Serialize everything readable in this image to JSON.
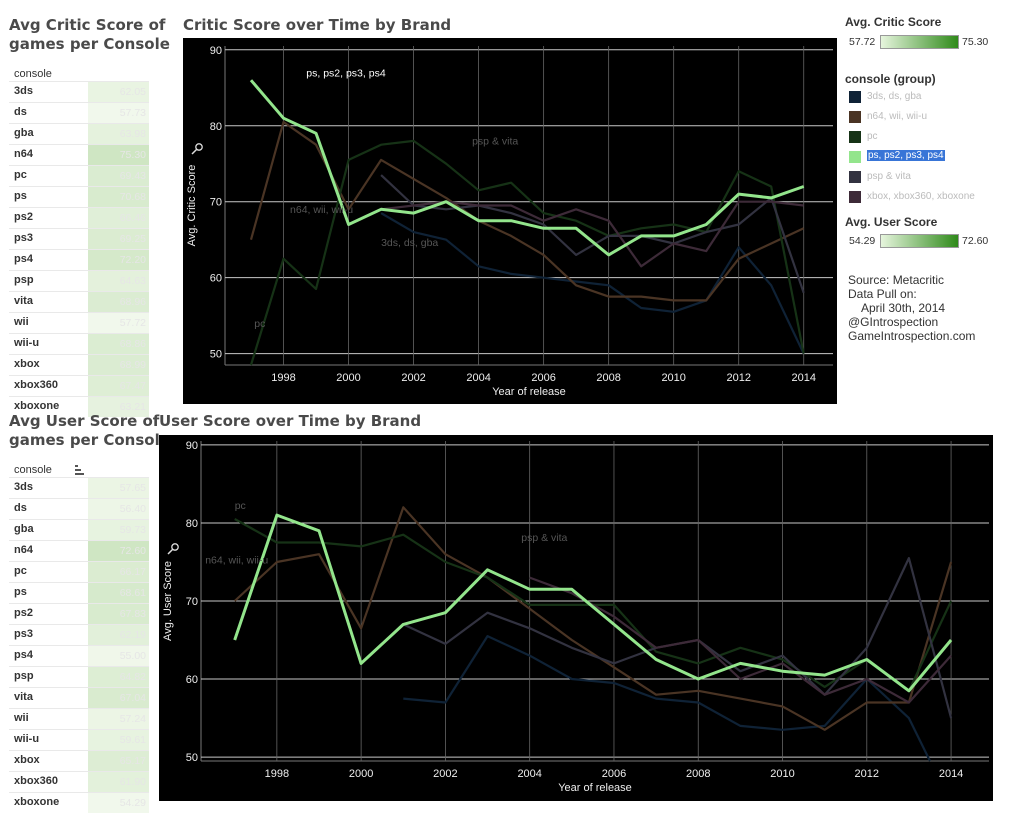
{
  "critic_table": {
    "title_line1": "Avg Critic Score of",
    "title_line2": "games per Console",
    "header": "console",
    "rows": [
      {
        "console": "3ds",
        "value": "62.05",
        "v": 62.05
      },
      {
        "console": "ds",
        "value": "57.73",
        "v": 57.73
      },
      {
        "console": "gba",
        "value": "63.98",
        "v": 63.98
      },
      {
        "console": "n64",
        "value": "75.30",
        "v": 75.3
      },
      {
        "console": "pc",
        "value": "69.43",
        "v": 69.43
      },
      {
        "console": "ps",
        "value": "70.68",
        "v": 70.68
      },
      {
        "console": "ps2",
        "value": "66.46",
        "v": 66.46
      },
      {
        "console": "ps3",
        "value": "69.25",
        "v": 69.25
      },
      {
        "console": "ps4",
        "value": "72.20",
        "v": 72.2
      },
      {
        "console": "psp",
        "value": "64.63",
        "v": 64.63
      },
      {
        "console": "vita",
        "value": "68.96",
        "v": 68.96
      },
      {
        "console": "wii",
        "value": "57.72",
        "v": 57.72
      },
      {
        "console": "wii-u",
        "value": "68.86",
        "v": 68.86
      },
      {
        "console": "xbox",
        "value": "68.99",
        "v": 68.99
      },
      {
        "console": "xbox360",
        "value": "67.47",
        "v": 67.47
      },
      {
        "console": "xboxone",
        "value": "63.21",
        "v": 63.21
      }
    ]
  },
  "user_table": {
    "title_line1": "Avg User Score of",
    "title_line2": "games per Console",
    "header": "console",
    "rows": [
      {
        "console": "3ds",
        "value": "57.65",
        "v": 57.65
      },
      {
        "console": "ds",
        "value": "56.40",
        "v": 56.4
      },
      {
        "console": "gba",
        "value": "59.73",
        "v": 59.73
      },
      {
        "console": "n64",
        "value": "72.60",
        "v": 72.6
      },
      {
        "console": "pc",
        "value": "66.17",
        "v": 66.17
      },
      {
        "console": "ps",
        "value": "68.61",
        "v": 68.61
      },
      {
        "console": "ps2",
        "value": "67.83",
        "v": 67.83
      },
      {
        "console": "ps3",
        "value": "62.19",
        "v": 62.19
      },
      {
        "console": "ps4",
        "value": "55.00",
        "v": 55.0
      },
      {
        "console": "psp",
        "value": "64.82",
        "v": 64.82
      },
      {
        "console": "vita",
        "value": "67.04",
        "v": 67.04
      },
      {
        "console": "wii",
        "value": "57.24",
        "v": 57.24
      },
      {
        "console": "wii-u",
        "value": "59.61",
        "v": 59.61
      },
      {
        "console": "xbox",
        "value": "65.17",
        "v": 65.17
      },
      {
        "console": "xbox360",
        "value": "61.90",
        "v": 61.9
      },
      {
        "console": "xboxone",
        "value": "54.29",
        "v": 54.29
      }
    ]
  },
  "legend": {
    "critic_title": "Avg. Critic Score",
    "critic_min": "57.72",
    "critic_max": "75.30",
    "group_title": "console (group)",
    "groups": [
      {
        "name": "3ds, ds, gba",
        "color": "#0f2236",
        "selected": false
      },
      {
        "name": "n64, wii, wii-u",
        "color": "#4a3424",
        "selected": false
      },
      {
        "name": "pc",
        "color": "#163216",
        "selected": false
      },
      {
        "name": "ps, ps2, ps3, ps4",
        "color": "#93e58c",
        "selected": true
      },
      {
        "name": "psp & vita",
        "color": "#323240",
        "selected": false
      },
      {
        "name": "xbox, xbox360, xboxone",
        "color": "#3d2a38",
        "selected": false
      }
    ],
    "user_title": "Avg. User Score",
    "user_min": "54.29",
    "user_max": "72.60"
  },
  "source": {
    "line1": "Source: Metacritic",
    "line2": "Data Pull on:",
    "line3": "April 30th, 2014",
    "line4": "@GIntrospection",
    "line5": "GameIntrospection.com"
  },
  "colors": {
    "gradient_light": "#e6f5dd",
    "gradient_dark": "#2f8a1a",
    "chart_bg": "#000000",
    "highlight": "#93e58c"
  },
  "chart_data": [
    {
      "type": "line",
      "title": "Critic Score over Time by Brand",
      "xlabel": "Year of release",
      "ylabel": "Avg. Critic Score",
      "xlim": [
        1996.2,
        2014.9
      ],
      "ylim": [
        48.5,
        90.5
      ],
      "xticks": [
        1998,
        2000,
        2002,
        2004,
        2006,
        2008,
        2010,
        2012,
        2014
      ],
      "yticks": [
        50,
        60,
        70,
        80,
        90
      ],
      "grid": true,
      "series": [
        {
          "name": "3ds, ds, gba",
          "color": "#0f2236",
          "width": 2.2,
          "x": [
            2001,
            2002,
            2003,
            2004,
            2005,
            2006,
            2007,
            2008,
            2009,
            2010,
            2011,
            2012,
            2013,
            2014
          ],
          "y": [
            68.5,
            66,
            65,
            61.5,
            60.5,
            60,
            59.5,
            59,
            56,
            55.5,
            57,
            64,
            59,
            50
          ]
        },
        {
          "name": "n64, wii, wii-u",
          "color": "#4a3424",
          "width": 2.2,
          "x": [
            1997,
            1998,
            1999,
            2000,
            2001,
            2002,
            2003,
            2004,
            2005,
            2006,
            2007,
            2008,
            2009,
            2010,
            2011,
            2012,
            2013,
            2014
          ],
          "y": [
            65,
            80.5,
            77.5,
            69,
            75.5,
            73,
            70.5,
            67.5,
            65.5,
            63,
            59,
            57.5,
            57.5,
            57,
            57,
            62.5,
            64.5,
            66.5
          ]
        },
        {
          "name": "pc",
          "color": "#163216",
          "width": 2.2,
          "x": [
            1997,
            1998,
            1999,
            2000,
            2001,
            2002,
            2003,
            2004,
            2005,
            2006,
            2007,
            2008,
            2009,
            2010,
            2011,
            2012,
            2013,
            2014
          ],
          "y": [
            48.5,
            62.5,
            58.5,
            75.5,
            77.5,
            78,
            75,
            71.5,
            72.5,
            68.5,
            67.5,
            65.5,
            66.5,
            67,
            66,
            74,
            72,
            50
          ]
        },
        {
          "name": "psp & vita",
          "color": "#323240",
          "width": 2.2,
          "x": [
            2001,
            2002,
            2003,
            2004,
            2005,
            2006,
            2007,
            2008,
            2009,
            2010,
            2011,
            2012,
            2013,
            2014
          ],
          "y": [
            73.5,
            69.5,
            69,
            69.5,
            68.5,
            67,
            63,
            65.5,
            65.5,
            64.5,
            66,
            67,
            70.5,
            58
          ]
        },
        {
          "name": "xbox, xbox360, xboxone",
          "color": "#3d2a38",
          "width": 2.2,
          "x": [
            2001,
            2002,
            2003,
            2004,
            2005,
            2006,
            2007,
            2008,
            2009,
            2010,
            2011,
            2012,
            2013,
            2014
          ],
          "y": [
            69,
            69.5,
            70,
            69.5,
            69.5,
            67.5,
            69,
            67.5,
            61.5,
            64.5,
            63.5,
            70,
            70,
            69.5
          ]
        },
        {
          "name": "ps, ps2, ps3, ps4",
          "color": "#93e58c",
          "width": 3,
          "x": [
            1997,
            1998,
            1999,
            2000,
            2001,
            2002,
            2003,
            2004,
            2005,
            2006,
            2007,
            2008,
            2009,
            2010,
            2011,
            2012,
            2013,
            2014
          ],
          "y": [
            86,
            81,
            79,
            67,
            69,
            68.5,
            70,
            67.5,
            67.5,
            66.5,
            66.5,
            63,
            65.5,
            65.5,
            67,
            71,
            70.5,
            72
          ]
        }
      ],
      "annotations": [
        {
          "text": "ps, ps2, ps3, ps4",
          "x": 1998.7,
          "y": 86.5,
          "color": "#ffffff"
        },
        {
          "text": "psp & vita",
          "x": 2003.8,
          "y": 77.5,
          "color": "#555555"
        },
        {
          "text": "n64, wii, wii-u",
          "x": 1998.2,
          "y": 68.5,
          "color": "#555555"
        },
        {
          "text": "3ds, ds, gba",
          "x": 2001.0,
          "y": 64.2,
          "color": "#555555"
        },
        {
          "text": "pc",
          "x": 1997.1,
          "y": 53.5,
          "color": "#555555"
        }
      ]
    },
    {
      "type": "line",
      "title": "User Score over Time by Brand",
      "xlabel": "Year of release",
      "ylabel": "Avg. User Score",
      "xlim": [
        1996.2,
        2014.9
      ],
      "ylim": [
        49.5,
        90.5
      ],
      "xticks": [
        1998,
        2000,
        2002,
        2004,
        2006,
        2008,
        2010,
        2012,
        2014
      ],
      "yticks": [
        50,
        60,
        70,
        80,
        90
      ],
      "grid": true,
      "series": [
        {
          "name": "3ds, ds, gba",
          "color": "#0f2236",
          "width": 2.2,
          "x": [
            2001,
            2002,
            2003,
            2004,
            2005,
            2006,
            2007,
            2008,
            2009,
            2010,
            2011,
            2012,
            2013,
            2013.5
          ],
          "y": [
            57.5,
            57,
            65.5,
            63,
            60,
            59.5,
            57.5,
            57,
            54,
            53.5,
            54,
            60,
            55,
            49.5
          ]
        },
        {
          "name": "n64, wii, wii-u",
          "color": "#4a3424",
          "width": 2.2,
          "x": [
            1997,
            1998,
            1999,
            2000,
            2001,
            2002,
            2003,
            2004,
            2005,
            2006,
            2007,
            2008,
            2009,
            2010,
            2011,
            2012,
            2013,
            2014
          ],
          "y": [
            70,
            75,
            76,
            66.5,
            82,
            76,
            73,
            69,
            65,
            61.5,
            58,
            58.5,
            57.5,
            56.5,
            53.5,
            57,
            57,
            75
          ]
        },
        {
          "name": "pc",
          "color": "#163216",
          "width": 2.2,
          "x": [
            1997,
            1998,
            1999,
            2000,
            2001,
            2002,
            2003,
            2004,
            2005,
            2006,
            2007,
            2008,
            2009,
            2010,
            2011,
            2012,
            2013,
            2014
          ],
          "y": [
            80.5,
            77.5,
            77.5,
            77,
            78.5,
            75,
            73,
            69.5,
            69.5,
            69.5,
            63.5,
            62,
            64,
            62.5,
            59,
            62.5,
            58.5,
            70
          ]
        },
        {
          "name": "psp & vita",
          "color": "#323240",
          "width": 2.2,
          "x": [
            2001,
            2002,
            2003,
            2004,
            2005,
            2006,
            2007,
            2008,
            2009,
            2010,
            2011,
            2012,
            2013,
            2014
          ],
          "y": [
            67,
            64.5,
            68.5,
            66.5,
            64,
            62,
            64,
            65,
            61,
            63,
            58,
            64,
            75.5,
            55
          ]
        },
        {
          "name": "xbox, xbox360, xboxone",
          "color": "#3d2a38",
          "width": 2.2,
          "x": [
            2004,
            2005,
            2006,
            2007,
            2008,
            2009,
            2010,
            2011,
            2012,
            2013,
            2014
          ],
          "y": [
            73,
            71,
            68,
            64,
            65,
            60,
            62,
            58,
            60,
            57,
            63
          ]
        },
        {
          "name": "ps, ps2, ps3, ps4",
          "color": "#93e58c",
          "width": 3,
          "x": [
            1997,
            1998,
            1999,
            2000,
            2001,
            2002,
            2003,
            2004,
            2005,
            2006,
            2007,
            2008,
            2009,
            2010,
            2011,
            2012,
            2013,
            2014
          ],
          "y": [
            65,
            81,
            79,
            62,
            67,
            68.5,
            74,
            71.5,
            71.5,
            67,
            62.5,
            60,
            62,
            61,
            60.5,
            62.5,
            58.5,
            65
          ]
        }
      ],
      "annotations": [
        {
          "text": "pc",
          "x": 1997.0,
          "y": 81.8,
          "color": "#555555"
        },
        {
          "text": "psp & vita",
          "x": 2003.8,
          "y": 77.7,
          "color": "#555555"
        },
        {
          "text": "n64, wii, wii-u",
          "x": 1996.3,
          "y": 74.8,
          "color": "#555555"
        }
      ]
    }
  ]
}
